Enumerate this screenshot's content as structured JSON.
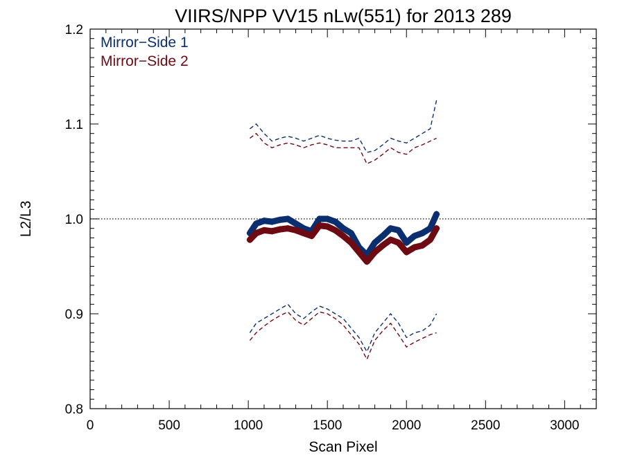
{
  "chart_data": {
    "type": "scatter",
    "title": "VIIRS/NPP VV15 nLw(551) for 2013 289",
    "xlabel": "Scan Pixel",
    "ylabel": "L2/L3",
    "xlim": [
      0,
      3200
    ],
    "ylim": [
      0.8,
      1.2
    ],
    "x_ticks": [
      0,
      500,
      1000,
      1500,
      2000,
      2500,
      3000
    ],
    "y_ticks": [
      0.8,
      0.9,
      1.0,
      1.1,
      1.2
    ],
    "x_tick_labels": [
      "0",
      "500",
      "1000",
      "1500",
      "2000",
      "2500",
      "3000"
    ],
    "y_tick_labels": [
      "0.8",
      "0.9",
      "1.0",
      "1.1",
      "1.2"
    ],
    "reference_line": 1.0,
    "legend": {
      "placement": "top-left"
    },
    "x": [
      1010,
      1050,
      1100,
      1150,
      1200,
      1250,
      1300,
      1350,
      1400,
      1450,
      1500,
      1550,
      1600,
      1650,
      1700,
      1750,
      1800,
      1850,
      1900,
      1950,
      2000,
      2050,
      2100,
      2150,
      2190
    ],
    "series": [
      {
        "name": "Mirror−Side 1",
        "color": "#0b2f6e",
        "values": [
          0.985,
          0.995,
          0.998,
          0.997,
          0.999,
          1.0,
          0.995,
          0.99,
          0.987,
          1.0,
          1.0,
          0.997,
          0.99,
          0.985,
          0.97,
          0.962,
          0.975,
          0.982,
          0.99,
          0.988,
          0.975,
          0.982,
          0.985,
          0.99,
          1.005
        ],
        "upper": [
          1.095,
          1.1,
          1.09,
          1.082,
          1.085,
          1.087,
          1.085,
          1.082,
          1.085,
          1.088,
          1.085,
          1.083,
          1.082,
          1.082,
          1.085,
          1.07,
          1.072,
          1.078,
          1.085,
          1.082,
          1.08,
          1.085,
          1.09,
          1.095,
          1.125
        ],
        "lower": [
          0.88,
          0.89,
          0.895,
          0.9,
          0.905,
          0.91,
          0.9,
          0.895,
          0.902,
          0.908,
          0.905,
          0.9,
          0.895,
          0.885,
          0.875,
          0.86,
          0.88,
          0.89,
          0.9,
          0.89,
          0.875,
          0.88,
          0.882,
          0.888,
          0.9
        ]
      },
      {
        "name": "Mirror−Side 2",
        "color": "#6e0a12",
        "values": [
          0.978,
          0.985,
          0.988,
          0.987,
          0.989,
          0.99,
          0.988,
          0.985,
          0.982,
          0.993,
          0.992,
          0.988,
          0.982,
          0.975,
          0.965,
          0.955,
          0.965,
          0.972,
          0.978,
          0.975,
          0.965,
          0.97,
          0.972,
          0.978,
          0.99
        ],
        "upper": [
          1.085,
          1.09,
          1.08,
          1.075,
          1.078,
          1.08,
          1.078,
          1.075,
          1.078,
          1.08,
          1.078,
          1.075,
          1.075,
          1.075,
          1.075,
          1.058,
          1.062,
          1.068,
          1.075,
          1.07,
          1.068,
          1.075,
          1.078,
          1.082,
          1.085
        ],
        "lower": [
          0.872,
          0.88,
          0.887,
          0.893,
          0.898,
          0.902,
          0.893,
          0.888,
          0.895,
          0.902,
          0.9,
          0.895,
          0.888,
          0.878,
          0.868,
          0.852,
          0.872,
          0.882,
          0.89,
          0.878,
          0.865,
          0.87,
          0.874,
          0.878,
          0.88
        ]
      }
    ]
  }
}
